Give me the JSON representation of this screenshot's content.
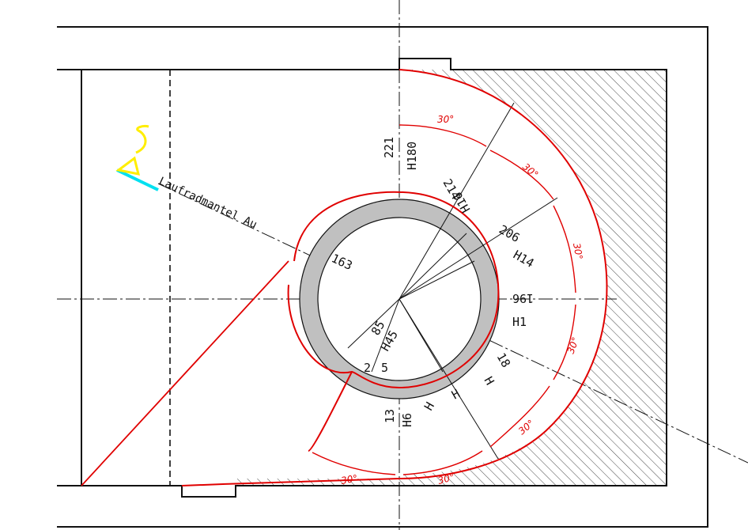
{
  "labels": {
    "mantel": "Laufradmantel Au",
    "h180": "H180",
    "v221": "221",
    "v214": "214",
    "h16": "H16",
    "v206": "206",
    "h14": "H14",
    "v196": "196",
    "h1": "H1",
    "v163": "163",
    "v85": "85",
    "h45": "H45",
    "v2": "2",
    "v5": "5",
    "h18": "18",
    "hH": "H",
    "v13": "13",
    "hH6": "H6",
    "hH2": "H",
    "hH3": "H"
  },
  "angles": {
    "a1": "30°",
    "a2": "30°",
    "a3": "30°",
    "a4": "30°",
    "a5": "30°",
    "a6": "30°",
    "a7": "30°"
  },
  "colors": {
    "line": "#111111",
    "red": "#e00000",
    "ring": "#c0c0c0",
    "hatch": "#333333",
    "yellow": "#ffee00",
    "cyan": "#00e0f0"
  }
}
